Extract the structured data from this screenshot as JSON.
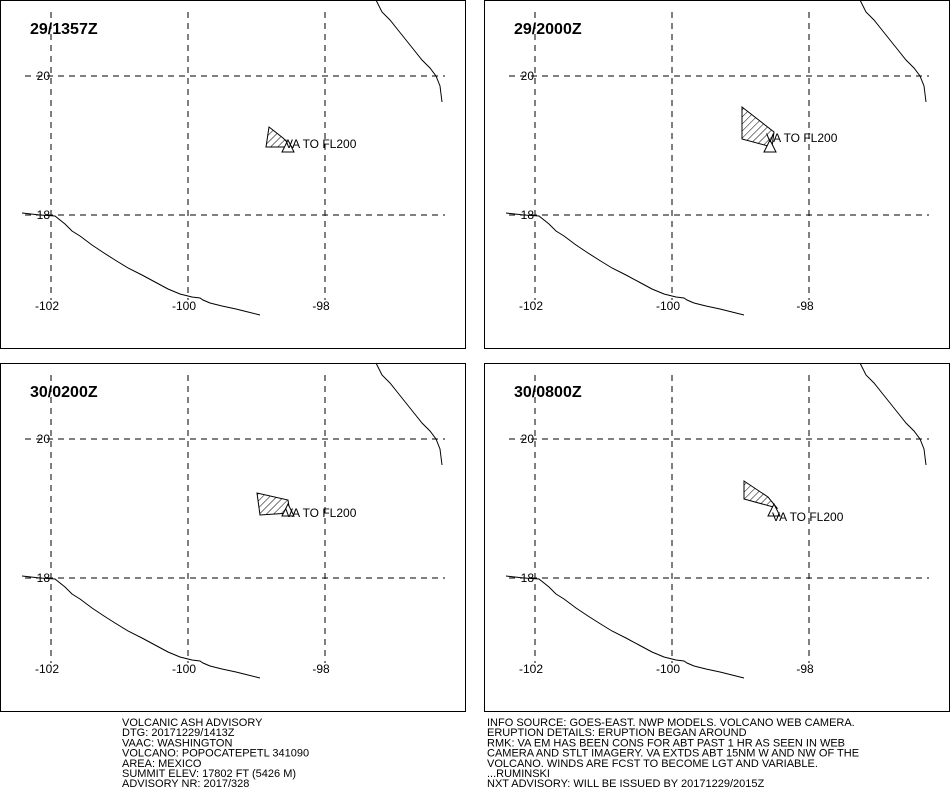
{
  "panels": [
    {
      "time": "29/1357Z",
      "annotation": "VA TO FL200"
    },
    {
      "time": "29/2000Z",
      "annotation": "VA TO FL200"
    },
    {
      "time": "30/0200Z",
      "annotation": "VA TO FL200"
    },
    {
      "time": "30/0800Z",
      "annotation": "VA TO FL200"
    }
  ],
  "latitudes": [
    20,
    18
  ],
  "longitudes": [
    -102,
    -100,
    -98
  ],
  "advisory_left": [
    "VOLCANIC ASH ADVISORY",
    "DTG: 20171229/1413Z",
    "VAAC: WASHINGTON",
    "VOLCANO: POPOCATEPETL 341090",
    "AREA: MEXICO",
    "SUMMIT ELEV: 17802 FT (5426 M)",
    "ADVISORY NR: 2017/328"
  ],
  "advisory_right": [
    "INFO SOURCE: GOES-EAST. NWP MODELS. VOLCANO WEB CAMERA.",
    "ERUPTION DETAILS: ERUPTION BEGAN AROUND",
    "RMK: VA EM HAS BEEN CONS FOR ABT PAST 1 HR AS SEEN IN WEB",
    "CAMERA AND STLT IMAGERY. VA EXTDS ABT 15NM W AND NW OF THE",
    "VOLCANO. WINDS ARE FCST TO BECOME LGT AND VARIABLE.",
    "...RUMINSKI",
    "NXT ADVISORY: WILL BE ISSUED BY 20171229/2015Z"
  ]
}
